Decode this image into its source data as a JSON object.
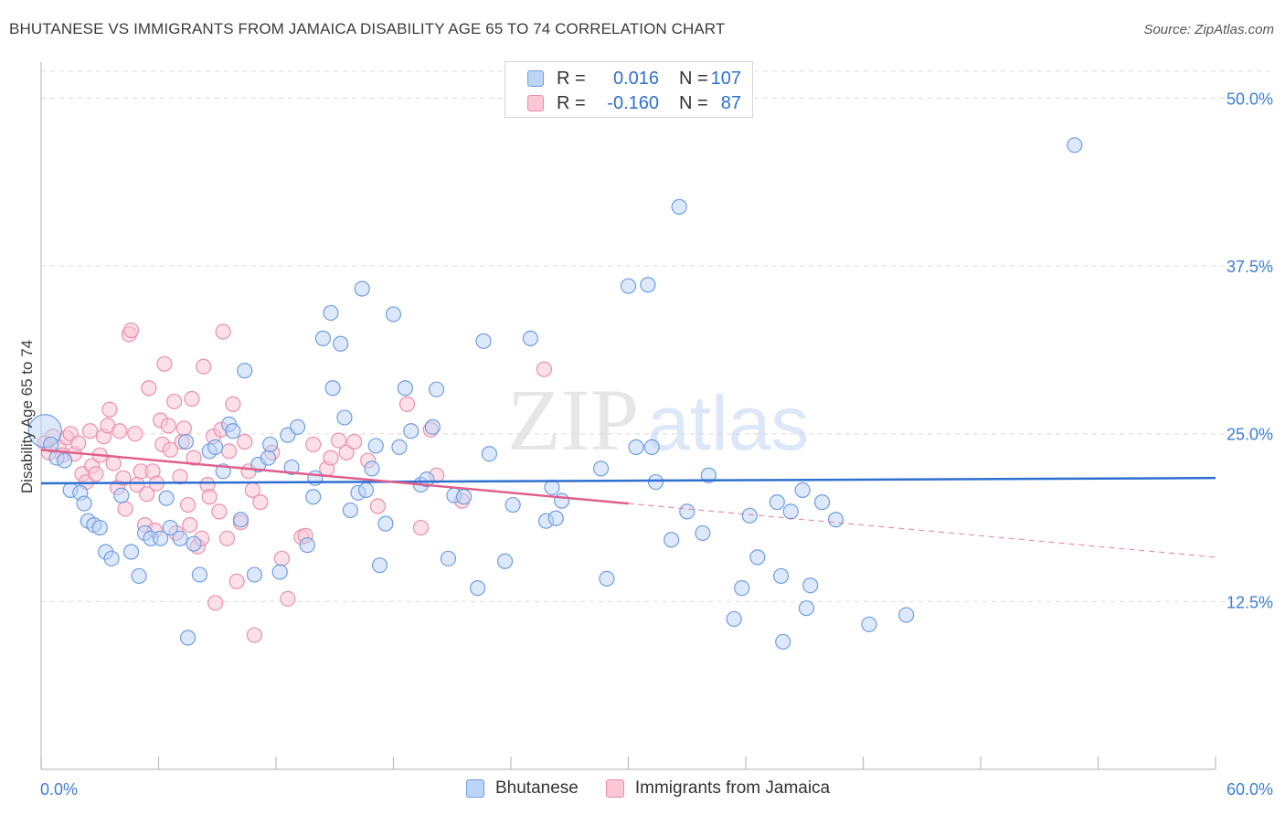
{
  "title": "BHUTANESE VS IMMIGRANTS FROM JAMAICA DISABILITY AGE 65 TO 74 CORRELATION CHART",
  "source": "Source: ZipAtlas.com",
  "watermark": {
    "zip": "ZIP",
    "atlas": "atlas"
  },
  "legend": {
    "rows": [
      {
        "r_label": "R =",
        "r_value": "0.016",
        "n_label": "N =",
        "n_value": "107"
      },
      {
        "r_label": "R =",
        "r_value": "-0.160",
        "n_label": "N =",
        "n_value": "87"
      }
    ]
  },
  "colors": {
    "blue": "#2f6fd0",
    "blue_fill": "#bcd4f5",
    "pink": "#e0608c",
    "pink_fill": "#f9c7d6",
    "axis_text": "#3d7fd6",
    "grid": "#dcdcdc"
  },
  "chart_data": {
    "type": "scatter",
    "title": "BHUTANESE VS IMMIGRANTS FROM JAMAICA DISABILITY AGE 65 TO 74 CORRELATION CHART",
    "xlabel": "",
    "ylabel": "Disability Age 65 to 74",
    "xlim": [
      0,
      60
    ],
    "ylim": [
      0,
      52
    ],
    "x_tick_labels": [
      "0.0%",
      "60.0%"
    ],
    "y_ticks": [
      12.5,
      25.0,
      37.5,
      50.0
    ],
    "y_tick_labels": [
      "12.5%",
      "25.0%",
      "37.5%",
      "50.0%"
    ],
    "grid": true,
    "legend_position": "top-center",
    "series": [
      {
        "name": "Bhutanese",
        "color": "#2f6fd0",
        "trend": {
          "x": [
            0,
            60
          ],
          "y": [
            21.3,
            21.7
          ],
          "dashed_from": null
        },
        "points": [
          [
            0.2,
            25.2
          ],
          [
            0.5,
            24.2
          ],
          [
            0.8,
            23.2
          ],
          [
            1.2,
            23.0
          ],
          [
            1.5,
            20.8
          ],
          [
            2.0,
            20.6
          ],
          [
            2.2,
            19.8
          ],
          [
            2.4,
            18.5
          ],
          [
            2.7,
            18.2
          ],
          [
            3.0,
            18.0
          ],
          [
            3.3,
            16.2
          ],
          [
            3.6,
            15.7
          ],
          [
            4.1,
            20.4
          ],
          [
            4.6,
            16.2
          ],
          [
            5.0,
            14.4
          ],
          [
            5.3,
            17.6
          ],
          [
            5.6,
            17.2
          ],
          [
            6.1,
            17.2
          ],
          [
            6.4,
            20.2
          ],
          [
            6.6,
            18.0
          ],
          [
            7.1,
            17.2
          ],
          [
            7.4,
            24.4
          ],
          [
            7.5,
            9.8
          ],
          [
            7.8,
            16.8
          ],
          [
            8.1,
            14.5
          ],
          [
            8.6,
            23.7
          ],
          [
            8.9,
            24.0
          ],
          [
            9.3,
            22.2
          ],
          [
            9.6,
            25.7
          ],
          [
            9.8,
            25.2
          ],
          [
            10.2,
            18.6
          ],
          [
            10.4,
            29.7
          ],
          [
            10.9,
            14.5
          ],
          [
            11.1,
            22.7
          ],
          [
            11.6,
            23.2
          ],
          [
            11.7,
            24.2
          ],
          [
            12.2,
            14.7
          ],
          [
            12.6,
            24.9
          ],
          [
            12.8,
            22.5
          ],
          [
            13.1,
            25.5
          ],
          [
            13.6,
            16.7
          ],
          [
            13.9,
            20.3
          ],
          [
            14.0,
            21.7
          ],
          [
            14.4,
            32.1
          ],
          [
            14.8,
            34.0
          ],
          [
            14.9,
            28.4
          ],
          [
            15.3,
            31.7
          ],
          [
            15.5,
            26.2
          ],
          [
            15.8,
            19.3
          ],
          [
            16.2,
            20.6
          ],
          [
            16.4,
            35.8
          ],
          [
            16.6,
            20.8
          ],
          [
            16.9,
            22.4
          ],
          [
            17.1,
            24.1
          ],
          [
            17.3,
            15.2
          ],
          [
            17.6,
            18.3
          ],
          [
            18.0,
            33.9
          ],
          [
            18.3,
            24.0
          ],
          [
            18.6,
            28.4
          ],
          [
            18.9,
            25.2
          ],
          [
            19.4,
            21.2
          ],
          [
            19.7,
            21.6
          ],
          [
            20.0,
            25.5
          ],
          [
            20.2,
            28.3
          ],
          [
            20.8,
            15.7
          ],
          [
            21.1,
            20.4
          ],
          [
            21.6,
            20.3
          ],
          [
            22.3,
            13.5
          ],
          [
            22.6,
            31.9
          ],
          [
            22.9,
            23.5
          ],
          [
            23.7,
            15.5
          ],
          [
            24.1,
            19.7
          ],
          [
            25.0,
            32.1
          ],
          [
            25.8,
            18.5
          ],
          [
            26.1,
            21.0
          ],
          [
            26.3,
            18.7
          ],
          [
            26.6,
            20.0
          ],
          [
            28.6,
            22.4
          ],
          [
            28.9,
            14.2
          ],
          [
            30.0,
            36.0
          ],
          [
            30.4,
            24.0
          ],
          [
            31.0,
            36.1
          ],
          [
            31.2,
            24.0
          ],
          [
            31.4,
            21.4
          ],
          [
            32.2,
            17.1
          ],
          [
            32.6,
            41.9
          ],
          [
            33.0,
            19.2
          ],
          [
            33.8,
            17.6
          ],
          [
            34.1,
            21.9
          ],
          [
            35.4,
            11.2
          ],
          [
            35.8,
            13.5
          ],
          [
            36.2,
            18.9
          ],
          [
            36.6,
            15.8
          ],
          [
            37.6,
            19.9
          ],
          [
            37.8,
            14.4
          ],
          [
            37.9,
            9.5
          ],
          [
            38.3,
            19.2
          ],
          [
            38.9,
            20.8
          ],
          [
            39.1,
            12.0
          ],
          [
            39.3,
            13.7
          ],
          [
            39.9,
            19.9
          ],
          [
            40.6,
            18.6
          ],
          [
            42.3,
            10.8
          ],
          [
            44.2,
            11.5
          ],
          [
            52.8,
            46.5
          ]
        ]
      },
      {
        "name": "Immigrants from Jamaica",
        "color": "#e0608c",
        "trend": {
          "x": [
            0,
            60
          ],
          "y": [
            23.8,
            15.8
          ],
          "dashed_from": 30
        },
        "points": [
          [
            0.2,
            24.3
          ],
          [
            0.4,
            23.6
          ],
          [
            0.6,
            24.8
          ],
          [
            0.9,
            24.0
          ],
          [
            1.1,
            23.4
          ],
          [
            1.3,
            24.7
          ],
          [
            1.5,
            25.0
          ],
          [
            1.7,
            23.5
          ],
          [
            1.9,
            24.3
          ],
          [
            2.1,
            22.0
          ],
          [
            2.3,
            21.4
          ],
          [
            2.5,
            25.2
          ],
          [
            2.6,
            22.6
          ],
          [
            2.8,
            22.0
          ],
          [
            3.0,
            23.4
          ],
          [
            3.2,
            24.8
          ],
          [
            3.4,
            25.6
          ],
          [
            3.5,
            26.8
          ],
          [
            3.7,
            22.8
          ],
          [
            3.9,
            21.0
          ],
          [
            4.0,
            25.2
          ],
          [
            4.2,
            21.7
          ],
          [
            4.3,
            19.4
          ],
          [
            4.5,
            32.4
          ],
          [
            4.6,
            32.7
          ],
          [
            4.8,
            25.0
          ],
          [
            4.9,
            21.2
          ],
          [
            5.1,
            22.2
          ],
          [
            5.3,
            18.2
          ],
          [
            5.4,
            20.5
          ],
          [
            5.5,
            28.4
          ],
          [
            5.7,
            22.2
          ],
          [
            5.8,
            17.8
          ],
          [
            5.9,
            21.3
          ],
          [
            6.1,
            26.0
          ],
          [
            6.2,
            24.2
          ],
          [
            6.3,
            30.2
          ],
          [
            6.5,
            25.6
          ],
          [
            6.6,
            23.8
          ],
          [
            6.8,
            27.4
          ],
          [
            6.9,
            17.6
          ],
          [
            7.1,
            21.8
          ],
          [
            7.2,
            24.4
          ],
          [
            7.3,
            25.4
          ],
          [
            7.5,
            19.7
          ],
          [
            7.6,
            18.2
          ],
          [
            7.7,
            27.6
          ],
          [
            7.8,
            23.2
          ],
          [
            8.0,
            16.6
          ],
          [
            8.2,
            17.2
          ],
          [
            8.3,
            30.0
          ],
          [
            8.5,
            21.2
          ],
          [
            8.6,
            20.3
          ],
          [
            8.8,
            24.8
          ],
          [
            8.9,
            12.4
          ],
          [
            9.1,
            19.2
          ],
          [
            9.2,
            25.3
          ],
          [
            9.3,
            32.6
          ],
          [
            9.5,
            17.2
          ],
          [
            9.6,
            23.7
          ],
          [
            9.8,
            27.2
          ],
          [
            10.0,
            14.0
          ],
          [
            10.2,
            18.4
          ],
          [
            10.4,
            24.4
          ],
          [
            10.6,
            22.2
          ],
          [
            10.8,
            20.8
          ],
          [
            10.9,
            10.0
          ],
          [
            11.2,
            19.9
          ],
          [
            11.8,
            23.6
          ],
          [
            12.3,
            15.7
          ],
          [
            12.6,
            12.7
          ],
          [
            13.3,
            17.3
          ],
          [
            13.5,
            17.4
          ],
          [
            13.9,
            24.2
          ],
          [
            14.6,
            22.4
          ],
          [
            14.8,
            23.2
          ],
          [
            15.2,
            24.5
          ],
          [
            15.6,
            23.6
          ],
          [
            16.0,
            24.4
          ],
          [
            16.7,
            23.0
          ],
          [
            17.2,
            19.6
          ],
          [
            18.7,
            27.2
          ],
          [
            19.4,
            18.0
          ],
          [
            19.9,
            25.3
          ],
          [
            20.2,
            21.9
          ],
          [
            21.5,
            20.0
          ],
          [
            25.7,
            29.8
          ]
        ]
      }
    ]
  }
}
